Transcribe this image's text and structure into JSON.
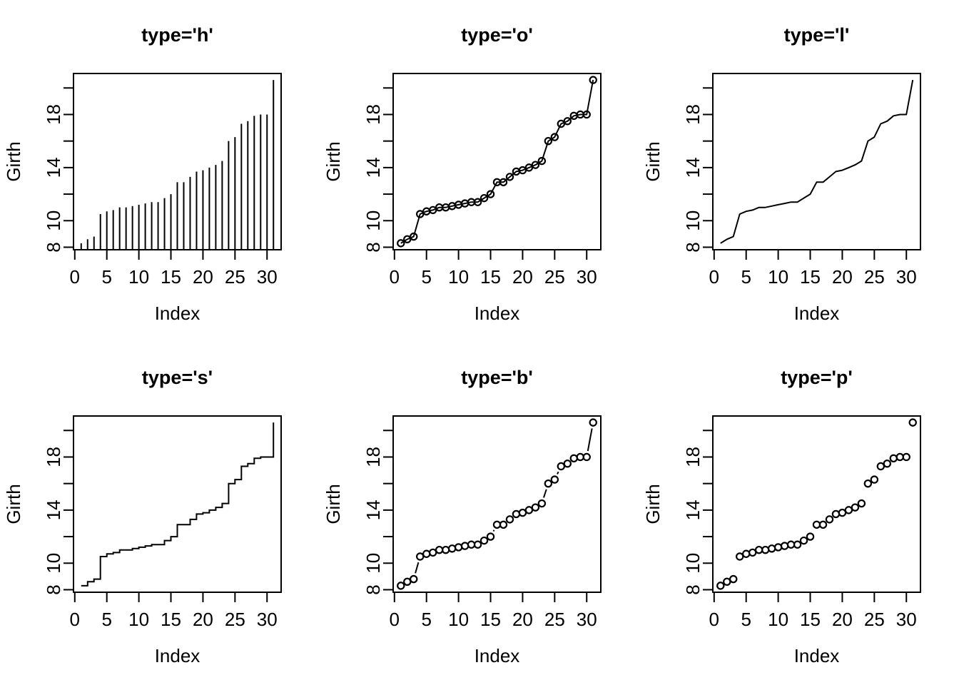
{
  "page": {
    "background": "#ffffff",
    "foreground": "#000000"
  },
  "chart_data": {
    "type": "line",
    "layout": "2x3 panel grid, same data drawn with six R plot types",
    "title": "",
    "xlabel": "Index",
    "ylabel": "Girth",
    "x": [
      1,
      2,
      3,
      4,
      5,
      6,
      7,
      8,
      9,
      10,
      11,
      12,
      13,
      14,
      15,
      16,
      17,
      18,
      19,
      20,
      21,
      22,
      23,
      24,
      25,
      26,
      27,
      28,
      29,
      30,
      31
    ],
    "values": [
      8.3,
      8.6,
      8.8,
      10.5,
      10.7,
      10.8,
      11.0,
      11.0,
      11.1,
      11.2,
      11.3,
      11.4,
      11.4,
      11.7,
      12.0,
      12.9,
      12.9,
      13.3,
      13.7,
      13.8,
      14.0,
      14.2,
      14.5,
      16.0,
      16.3,
      17.3,
      17.5,
      17.9,
      18.0,
      18.0,
      20.6
    ],
    "xlim": [
      -0.2,
      32.2
    ],
    "ylim": [
      7.81,
      21.09
    ],
    "x_ticks": [
      0,
      5,
      10,
      15,
      20,
      25,
      30
    ],
    "x_tick_labels": [
      "0",
      "5",
      "10",
      "15",
      "20",
      "25",
      "30"
    ],
    "y_ticks": [
      8,
      10,
      12,
      14,
      16,
      18,
      20
    ],
    "y_tick_labels": [
      "8",
      "10",
      "",
      "14",
      "",
      "18",
      ""
    ],
    "grid": false,
    "legend": null,
    "marker": "open-circle",
    "line_color": "#000000",
    "panels": [
      {
        "title": "type='h'",
        "plot_type": "h",
        "description": "vertical drop lines from baseline to each value"
      },
      {
        "title": "type='o'",
        "plot_type": "o",
        "description": "line overplotted with open-circle points"
      },
      {
        "title": "type='l'",
        "plot_type": "l",
        "description": "connecting line only"
      },
      {
        "title": "type='s'",
        "plot_type": "s",
        "description": "stair steps (horizontal then vertical)"
      },
      {
        "title": "type='b'",
        "plot_type": "b",
        "description": "open-circle points joined by gapped line segments"
      },
      {
        "title": "type='p'",
        "plot_type": "p",
        "description": "open-circle points only"
      }
    ]
  }
}
